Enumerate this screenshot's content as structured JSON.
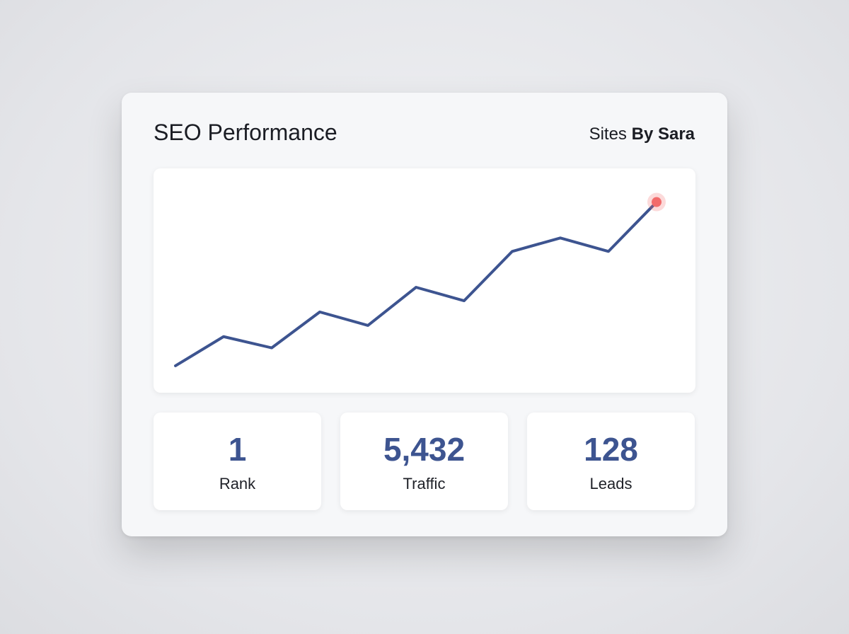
{
  "header": {
    "title": "SEO Performance",
    "brand_prefix": "Sites",
    "brand_name": "By Sara"
  },
  "chart_data": {
    "type": "line",
    "categories": [
      null,
      null,
      null,
      null,
      null,
      null,
      null,
      null,
      null,
      null,
      null
    ],
    "series": [
      {
        "color": "#3d5490",
        "values": [
          12,
          25,
          20,
          36,
          30,
          47,
          41,
          63,
          69,
          63,
          85
        ]
      }
    ],
    "ylim": [
      0,
      100
    ],
    "highlight_color": "#f26b6b"
  },
  "stats": [
    {
      "value": "1",
      "label": "Rank"
    },
    {
      "value": "5,432",
      "label": "Traffic"
    },
    {
      "value": "128",
      "label": "Leads"
    }
  ]
}
